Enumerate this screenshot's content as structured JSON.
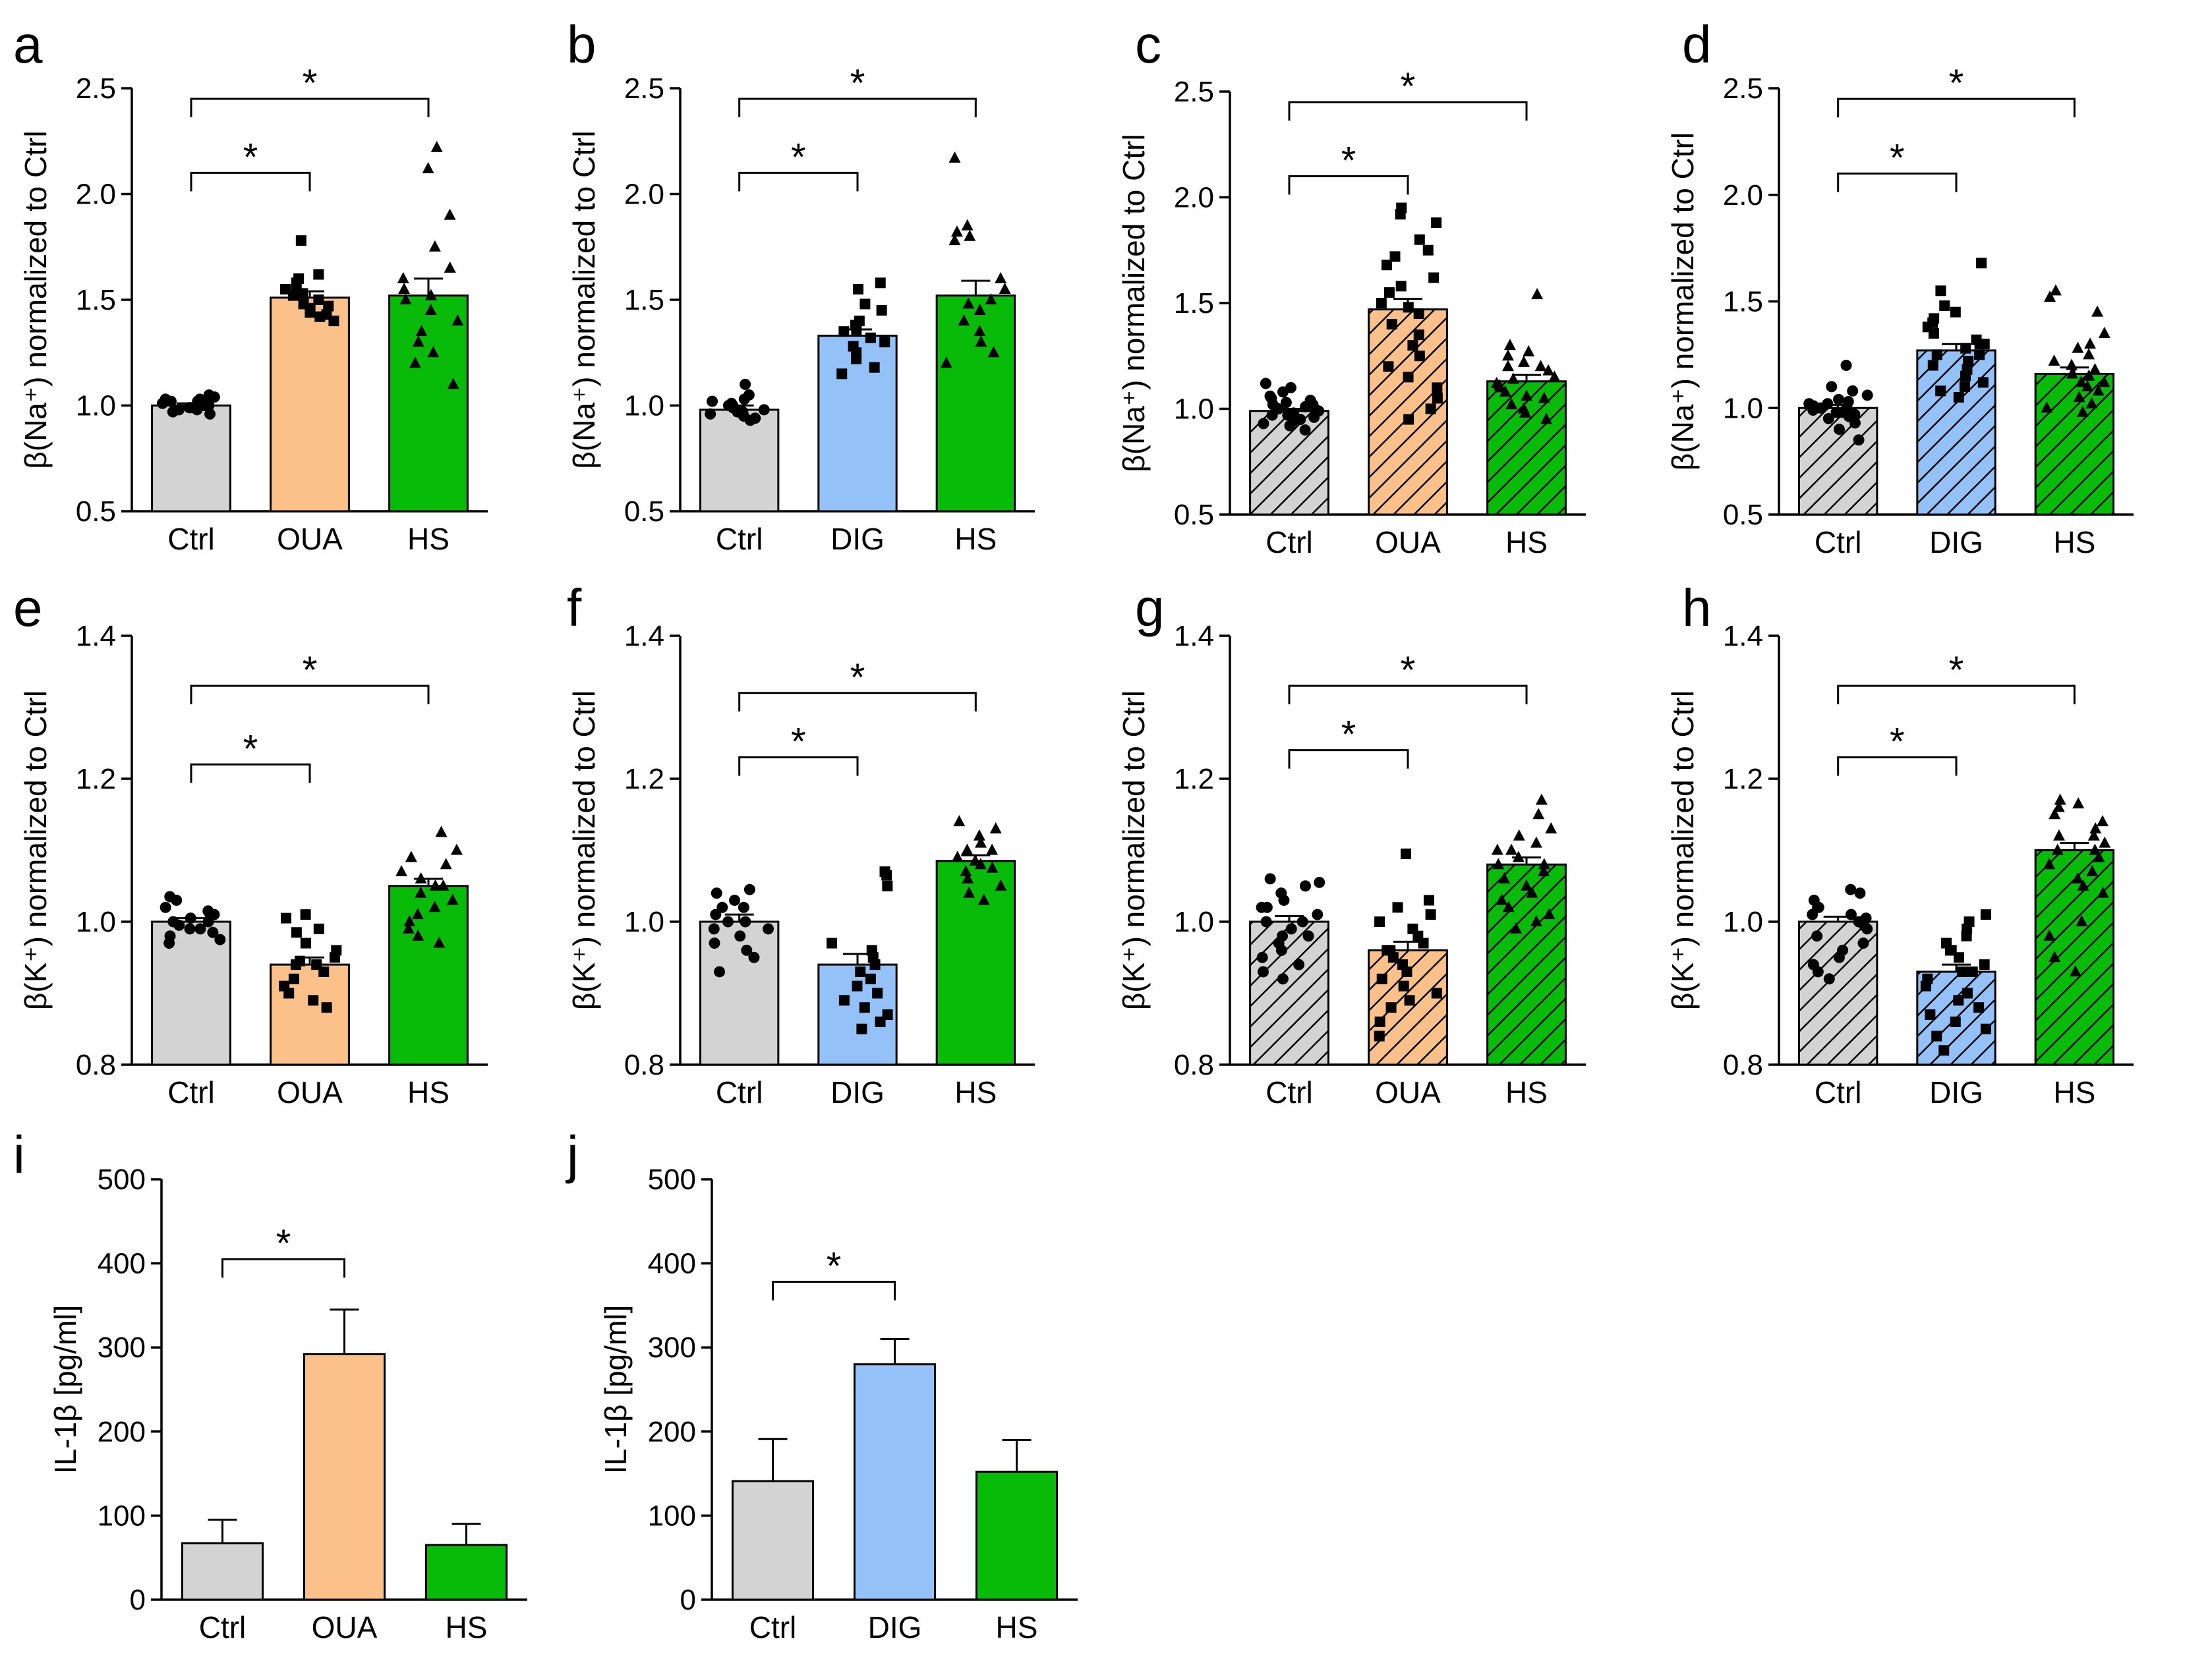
{
  "colors": {
    "ctrl": "#d3d3d3",
    "oua": "#fcc08a",
    "dig": "#94c2f8",
    "hs": "#09bb09",
    "axis": "#000000"
  },
  "chart_data": [
    {
      "panel": "a",
      "type": "bar",
      "ylabel": "β(Na⁺) normalized to Ctrl",
      "categories": [
        "Ctrl",
        "OUA",
        "HS"
      ],
      "values": [
        1.0,
        1.51,
        1.52
      ],
      "sem": [
        0.01,
        0.03,
        0.08
      ],
      "ylim": [
        0.5,
        2.5
      ],
      "yticks": [
        "0.5",
        "1.0",
        "1.5",
        "2.0",
        "2.5"
      ],
      "hatched": false,
      "colors": [
        "ctrl",
        "oua",
        "hs"
      ],
      "points": [
        [
          1.03,
          1.05,
          1.0,
          0.98,
          1.02,
          0.97,
          1.01,
          0.99,
          1.04,
          1.0,
          0.96,
          1.02,
          0.98,
          1.01,
          0.99,
          1.03
        ],
        [
          1.78,
          1.62,
          1.58,
          1.55,
          1.52,
          1.5,
          1.48,
          1.46,
          1.44,
          1.42,
          1.4,
          1.55,
          1.6,
          1.47,
          1.53,
          1.43
        ],
        [
          2.22,
          2.12,
          1.9,
          1.75,
          1.65,
          1.6,
          1.55,
          1.52,
          1.5,
          1.45,
          1.4,
          1.35,
          1.3,
          1.25,
          1.2,
          1.1
        ]
      ],
      "markers": [
        "circle",
        "square",
        "triangle"
      ],
      "sig": [
        {
          "from": 0,
          "to": 1,
          "y": 2.1,
          "label": "*"
        },
        {
          "from": 0,
          "to": 2,
          "y": 2.45,
          "label": "*"
        }
      ]
    },
    {
      "panel": "b",
      "type": "bar",
      "ylabel": "β(Na⁺) normalized to Ctrl",
      "categories": [
        "Ctrl",
        "DIG",
        "HS"
      ],
      "values": [
        0.98,
        1.33,
        1.52
      ],
      "sem": [
        0.02,
        0.03,
        0.07
      ],
      "ylim": [
        0.5,
        2.5
      ],
      "yticks": [
        "0.5",
        "1.0",
        "1.5",
        "2.0",
        "2.5"
      ],
      "hatched": false,
      "colors": [
        "ctrl",
        "dig",
        "hs"
      ],
      "points": [
        [
          1.1,
          1.05,
          1.02,
          1.0,
          0.98,
          0.96,
          0.95,
          0.93,
          1.0,
          0.97,
          0.99,
          1.01,
          0.94,
          0.97,
          1.03
        ],
        [
          1.58,
          1.55,
          1.48,
          1.45,
          1.4,
          1.38,
          1.35,
          1.32,
          1.3,
          1.28,
          1.25,
          1.22,
          1.18,
          1.15,
          1.36
        ],
        [
          2.17,
          1.85,
          1.82,
          1.8,
          1.78,
          1.6,
          1.55,
          1.5,
          1.45,
          1.4,
          1.35,
          1.3,
          1.25,
          1.2,
          1.48
        ]
      ],
      "markers": [
        "circle",
        "square",
        "triangle"
      ],
      "sig": [
        {
          "from": 0,
          "to": 1,
          "y": 2.1,
          "label": "*"
        },
        {
          "from": 0,
          "to": 2,
          "y": 2.45,
          "label": "*"
        }
      ]
    },
    {
      "panel": "c",
      "type": "bar",
      "ylabel": "β(Na⁺) normalized to Ctrl",
      "categories": [
        "Ctrl",
        "OUA",
        "HS"
      ],
      "values": [
        0.99,
        1.47,
        1.13
      ],
      "sem": [
        0.01,
        0.05,
        0.03
      ],
      "ylim": [
        0.5,
        2.5
      ],
      "yticks": [
        "0.5",
        "1.0",
        "1.5",
        "2.0",
        "2.5"
      ],
      "hatched": true,
      "colors": [
        "ctrl",
        "oua",
        "hs"
      ],
      "points": [
        [
          1.12,
          1.1,
          1.08,
          1.06,
          1.05,
          1.04,
          1.03,
          1.02,
          1.01,
          1.0,
          0.99,
          0.98,
          0.97,
          0.96,
          0.95,
          0.94,
          0.93,
          0.92,
          0.9,
          1.0,
          0.97,
          1.02
        ],
        [
          1.95,
          1.92,
          1.88,
          1.8,
          1.75,
          1.72,
          1.68,
          1.62,
          1.58,
          1.55,
          1.5,
          1.45,
          1.4,
          1.35,
          1.3,
          1.25,
          1.2,
          1.15,
          1.1,
          1.05,
          1.0,
          0.95,
          1.48
        ],
        [
          1.54,
          1.3,
          1.27,
          1.25,
          1.22,
          1.2,
          1.18,
          1.15,
          1.12,
          1.1,
          1.08,
          1.05,
          1.02,
          1.0,
          0.98,
          0.95,
          1.14,
          1.06,
          1.2,
          1.11
        ]
      ],
      "markers": [
        "circle",
        "square",
        "triangle"
      ],
      "sig": [
        {
          "from": 0,
          "to": 1,
          "y": 2.1,
          "label": "*"
        },
        {
          "from": 0,
          "to": 2,
          "y": 2.45,
          "label": "*"
        }
      ]
    },
    {
      "panel": "d",
      "type": "bar",
      "ylabel": "β(Na⁺) normalized to Ctrl",
      "categories": [
        "Ctrl",
        "DIG",
        "HS"
      ],
      "values": [
        1.0,
        1.27,
        1.16
      ],
      "sem": [
        0.015,
        0.03,
        0.03
      ],
      "ylim": [
        0.5,
        2.5
      ],
      "yticks": [
        "0.5",
        "1.0",
        "1.5",
        "2.0",
        "2.5"
      ],
      "hatched": true,
      "colors": [
        "ctrl",
        "dig",
        "hs"
      ],
      "points": [
        [
          1.2,
          1.1,
          1.08,
          1.06,
          1.04,
          1.03,
          1.02,
          1.01,
          1.0,
          0.99,
          0.98,
          0.97,
          0.96,
          0.95,
          0.93,
          0.9,
          0.85,
          1.0,
          1.02,
          0.98
        ],
        [
          1.68,
          1.55,
          1.48,
          1.45,
          1.42,
          1.4,
          1.38,
          1.35,
          1.32,
          1.3,
          1.28,
          1.25,
          1.22,
          1.2,
          1.18,
          1.15,
          1.12,
          1.1,
          1.08,
          1.05,
          1.25,
          1.3
        ],
        [
          1.55,
          1.52,
          1.45,
          1.35,
          1.3,
          1.28,
          1.25,
          1.22,
          1.2,
          1.18,
          1.15,
          1.12,
          1.1,
          1.08,
          1.05,
          1.02,
          1.0,
          0.98,
          1.16,
          1.12
        ]
      ],
      "markers": [
        "circle",
        "square",
        "triangle"
      ],
      "sig": [
        {
          "from": 0,
          "to": 1,
          "y": 2.1,
          "label": "*"
        },
        {
          "from": 0,
          "to": 2,
          "y": 2.45,
          "label": "*"
        }
      ]
    },
    {
      "panel": "e",
      "type": "bar",
      "ylabel": "β(K⁺) normalized to Ctrl",
      "categories": [
        "Ctrl",
        "OUA",
        "HS"
      ],
      "values": [
        1.0,
        0.94,
        1.05
      ],
      "sem": [
        0.005,
        0.01,
        0.01
      ],
      "ylim": [
        0.8,
        1.4
      ],
      "yticks": [
        "0.8",
        "1.0",
        "1.2",
        "1.4"
      ],
      "hatched": false,
      "colors": [
        "ctrl",
        "oua",
        "hs"
      ],
      "points": [
        [
          1.035,
          1.03,
          1.02,
          1.015,
          1.01,
          1.005,
          1.0,
          0.995,
          0.99,
          0.985,
          0.98,
          0.975,
          0.97,
          1.0,
          1.01,
          0.99
        ],
        [
          1.01,
          1.005,
          0.99,
          0.985,
          0.97,
          0.96,
          0.95,
          0.945,
          0.94,
          0.93,
          0.92,
          0.91,
          0.9,
          0.89,
          0.88,
          0.94
        ],
        [
          1.125,
          1.1,
          1.09,
          1.08,
          1.07,
          1.06,
          1.05,
          1.04,
          1.03,
          1.02,
          1.01,
          1.0,
          0.99,
          0.98,
          0.97,
          1.05
        ]
      ],
      "markers": [
        "circle",
        "square",
        "triangle"
      ],
      "sig": [
        {
          "from": 0,
          "to": 1,
          "y": 1.22,
          "label": "*"
        },
        {
          "from": 0,
          "to": 2,
          "y": 1.33,
          "label": "*"
        }
      ]
    },
    {
      "panel": "f",
      "type": "bar",
      "ylabel": "β(K⁺) normalized to Ctrl",
      "categories": [
        "Ctrl",
        "DIG",
        "HS"
      ],
      "values": [
        1.0,
        0.94,
        1.085
      ],
      "sem": [
        0.01,
        0.015,
        0.008
      ],
      "ylim": [
        0.8,
        1.4
      ],
      "yticks": [
        "0.8",
        "1.0",
        "1.2",
        "1.4"
      ],
      "hatched": false,
      "colors": [
        "ctrl",
        "dig",
        "hs"
      ],
      "points": [
        [
          1.045,
          1.04,
          1.03,
          1.02,
          1.01,
          1.0,
          0.99,
          0.98,
          0.97,
          0.96,
          0.95,
          0.93,
          1.0,
          1.02,
          0.99
        ],
        [
          1.07,
          1.065,
          1.05,
          0.97,
          0.96,
          0.95,
          0.94,
          0.93,
          0.92,
          0.91,
          0.9,
          0.89,
          0.88,
          0.87,
          0.86,
          0.85
        ],
        [
          1.14,
          1.13,
          1.12,
          1.11,
          1.1,
          1.09,
          1.085,
          1.08,
          1.07,
          1.06,
          1.05,
          1.04,
          1.03,
          1.1,
          1.075
        ]
      ],
      "markers": [
        "circle",
        "square",
        "triangle"
      ],
      "sig": [
        {
          "from": 0,
          "to": 1,
          "y": 1.23,
          "label": "*"
        },
        {
          "from": 0,
          "to": 2,
          "y": 1.32,
          "label": "*"
        }
      ]
    },
    {
      "panel": "g",
      "type": "bar",
      "ylabel": "β(K⁺) normalized to Ctrl",
      "categories": [
        "Ctrl",
        "OUA",
        "HS"
      ],
      "values": [
        1.0,
        0.96,
        1.08
      ],
      "sem": [
        0.008,
        0.012,
        0.01
      ],
      "ylim": [
        0.8,
        1.4
      ],
      "yticks": [
        "0.8",
        "1.0",
        "1.2",
        "1.4"
      ],
      "hatched": true,
      "colors": [
        "ctrl",
        "oua",
        "hs"
      ],
      "points": [
        [
          1.06,
          1.055,
          1.05,
          1.04,
          1.03,
          1.02,
          1.01,
          1.0,
          0.99,
          0.98,
          0.97,
          0.96,
          0.95,
          0.94,
          0.93,
          0.92,
          1.0,
          1.02,
          0.98
        ],
        [
          1.095,
          1.03,
          1.02,
          1.01,
          1.0,
          0.99,
          0.98,
          0.97,
          0.96,
          0.95,
          0.94,
          0.93,
          0.92,
          0.91,
          0.9,
          0.89,
          0.88,
          0.86,
          0.84,
          0.96
        ],
        [
          1.17,
          1.15,
          1.13,
          1.12,
          1.11,
          1.1,
          1.09,
          1.08,
          1.07,
          1.06,
          1.05,
          1.04,
          1.03,
          1.02,
          1.01,
          1.0,
          0.99,
          1.08,
          1.1
        ]
      ],
      "markers": [
        "circle",
        "square",
        "triangle"
      ],
      "sig": [
        {
          "from": 0,
          "to": 1,
          "y": 1.24,
          "label": "*"
        },
        {
          "from": 0,
          "to": 2,
          "y": 1.33,
          "label": "*"
        }
      ]
    },
    {
      "panel": "h",
      "type": "bar",
      "ylabel": "β(K⁺) normalized to Ctrl",
      "categories": [
        "Ctrl",
        "DIG",
        "HS"
      ],
      "values": [
        1.0,
        0.93,
        1.1
      ],
      "sem": [
        0.007,
        0.01,
        0.01
      ],
      "ylim": [
        0.8,
        1.4
      ],
      "yticks": [
        "0.8",
        "1.0",
        "1.2",
        "1.4"
      ],
      "hatched": true,
      "colors": [
        "ctrl",
        "dig",
        "hs"
      ],
      "points": [
        [
          1.045,
          1.04,
          1.03,
          1.02,
          1.01,
          1.005,
          1.0,
          0.995,
          0.99,
          0.98,
          0.97,
          0.96,
          0.95,
          0.94,
          0.93,
          0.92,
          1.0,
          1.02,
          1.01
        ],
        [
          1.01,
          1.0,
          0.99,
          0.98,
          0.97,
          0.96,
          0.95,
          0.94,
          0.93,
          0.92,
          0.91,
          0.9,
          0.89,
          0.88,
          0.87,
          0.86,
          0.85,
          0.84,
          0.82,
          0.93,
          0.96
        ],
        [
          1.17,
          1.165,
          1.16,
          1.15,
          1.14,
          1.13,
          1.12,
          1.11,
          1.1,
          1.09,
          1.08,
          1.07,
          1.06,
          1.05,
          1.04,
          1.0,
          0.98,
          0.95,
          0.93,
          1.1,
          1.12
        ]
      ],
      "markers": [
        "circle",
        "square",
        "triangle"
      ],
      "sig": [
        {
          "from": 0,
          "to": 1,
          "y": 1.23,
          "label": "*"
        },
        {
          "from": 0,
          "to": 2,
          "y": 1.33,
          "label": "*"
        }
      ]
    },
    {
      "panel": "i",
      "type": "bar",
      "ylabel": "IL-1β [pg/ml]",
      "categories": [
        "Ctrl",
        "OUA",
        "HS"
      ],
      "values": [
        67,
        292,
        65
      ],
      "error": [
        28,
        53,
        25
      ],
      "ylim": [
        0,
        500
      ],
      "yticks": [
        "0",
        "100",
        "200",
        "300",
        "400",
        "500"
      ],
      "hatched": false,
      "colors": [
        "ctrl",
        "oua",
        "hs"
      ],
      "sig": [
        {
          "from": 0,
          "to": 1,
          "y": 405,
          "label": "*"
        }
      ]
    },
    {
      "panel": "j",
      "type": "bar",
      "ylabel": "IL-1β [pg/ml]",
      "categories": [
        "Ctrl",
        "DIG",
        "HS"
      ],
      "values": [
        141,
        280,
        152
      ],
      "error": [
        50,
        30,
        38
      ],
      "ylim": [
        0,
        500
      ],
      "yticks": [
        "0",
        "100",
        "200",
        "300",
        "400",
        "500"
      ],
      "hatched": false,
      "colors": [
        "ctrl",
        "dig",
        "hs"
      ],
      "sig": [
        {
          "from": 0,
          "to": 1,
          "y": 378,
          "label": "*"
        }
      ]
    }
  ]
}
